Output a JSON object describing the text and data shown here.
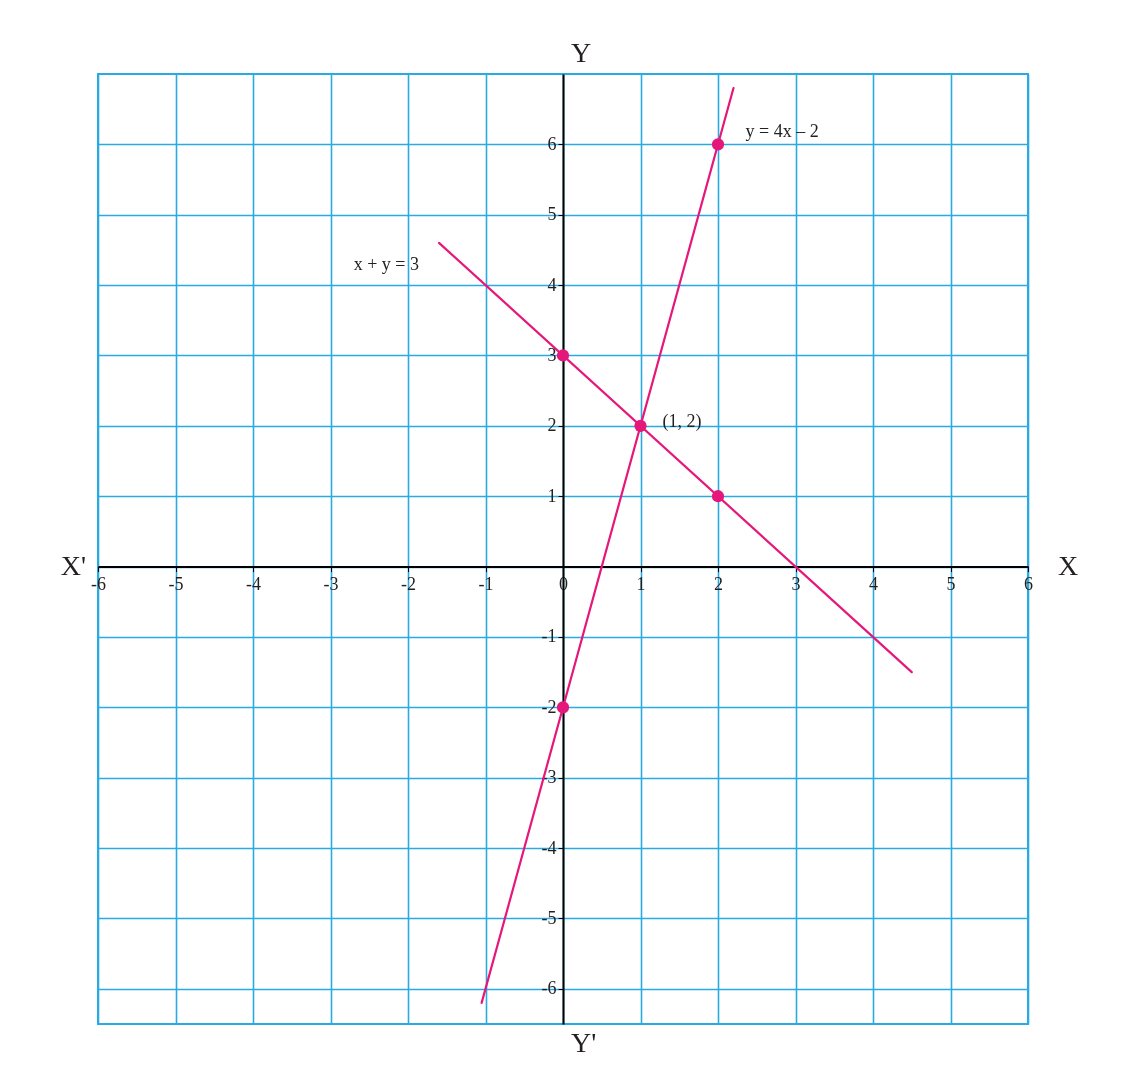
{
  "chart_data": {
    "type": "line",
    "xlabel": "X",
    "ylabel": "Y",
    "xlim": [
      -6,
      6
    ],
    "ylim": [
      -6.5,
      7
    ],
    "xticks": [
      -6,
      -5,
      -4,
      -3,
      -2,
      -1,
      0,
      1,
      2,
      3,
      4,
      5,
      6
    ],
    "yticks": [
      -6,
      -5,
      -4,
      -3,
      -2,
      -1,
      {
        "value": 0,
        "label": null
      },
      1,
      2,
      3,
      4,
      5,
      6
    ],
    "grid": true,
    "annotations": [
      {
        "text": "(1, 2)",
        "x": 1,
        "y": 2
      },
      "X'",
      "Y'"
    ],
    "series": [
      {
        "name": "y = 4x – 2",
        "color": "#e6177a",
        "x": [
          -1.05,
          2.2
        ],
        "values": [
          -6.2,
          6.8
        ]
      },
      {
        "name": "x + y = 3",
        "color": "#e6177a",
        "x": [
          -1.6,
          4.5
        ],
        "values": [
          4.6,
          -1.5
        ]
      },
      {
        "type": "scatter",
        "marker": "circle",
        "color": "#e6177a",
        "x": [
          0,
          1,
          2,
          0,
          2
        ],
        "values": [
          3,
          2,
          1,
          -2,
          6
        ]
      }
    ]
  }
}
